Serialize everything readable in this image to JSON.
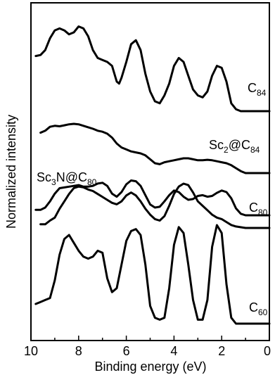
{
  "chart_data": {
    "type": "line",
    "title": "",
    "xlabel": "Binding energy (eV)",
    "ylabel": "Normalized intensity",
    "xlim": [
      10,
      0
    ],
    "x_reversed": true,
    "xticks": [
      "10",
      "8",
      "6",
      "4",
      "2",
      "0"
    ],
    "yticks_shown": false,
    "grid": false,
    "series": [
      {
        "label_main": "C",
        "label_sub": "84",
        "label_rest": "",
        "points": [
          [
            9.8,
            0.56
          ],
          [
            9.6,
            0.57
          ],
          [
            9.4,
            0.62
          ],
          [
            9.2,
            0.74
          ],
          [
            9.0,
            0.82
          ],
          [
            8.8,
            0.84
          ],
          [
            8.6,
            0.82
          ],
          [
            8.4,
            0.78
          ],
          [
            8.2,
            0.8
          ],
          [
            8.0,
            0.86
          ],
          [
            7.8,
            0.84
          ],
          [
            7.6,
            0.76
          ],
          [
            7.4,
            0.62
          ],
          [
            7.2,
            0.54
          ],
          [
            7.0,
            0.52
          ],
          [
            6.8,
            0.5
          ],
          [
            6.6,
            0.46
          ],
          [
            6.4,
            0.3
          ],
          [
            6.3,
            0.28
          ],
          [
            6.2,
            0.34
          ],
          [
            6.0,
            0.5
          ],
          [
            5.8,
            0.68
          ],
          [
            5.6,
            0.72
          ],
          [
            5.4,
            0.62
          ],
          [
            5.2,
            0.38
          ],
          [
            5.0,
            0.2
          ],
          [
            4.8,
            0.1
          ],
          [
            4.6,
            0.08
          ],
          [
            4.4,
            0.16
          ],
          [
            4.2,
            0.28
          ],
          [
            4.0,
            0.46
          ],
          [
            3.8,
            0.54
          ],
          [
            3.6,
            0.5
          ],
          [
            3.4,
            0.36
          ],
          [
            3.2,
            0.22
          ],
          [
            3.0,
            0.16
          ],
          [
            2.8,
            0.14
          ],
          [
            2.6,
            0.2
          ],
          [
            2.4,
            0.36
          ],
          [
            2.2,
            0.46
          ],
          [
            2.0,
            0.44
          ],
          [
            1.8,
            0.3
          ],
          [
            1.6,
            0.08
          ],
          [
            1.4,
            0.02
          ],
          [
            1.2,
            0.0
          ],
          [
            1.0,
            0.0
          ],
          [
            0.0,
            0.0
          ]
        ]
      },
      {
        "label_main": "Sc",
        "label_sub": "2",
        "label_rest": "@C84",
        "points": [
          [
            9.6,
            0.82
          ],
          [
            9.4,
            0.86
          ],
          [
            9.2,
            0.94
          ],
          [
            9.0,
            0.96
          ],
          [
            8.8,
            0.95
          ],
          [
            8.6,
            0.97
          ],
          [
            8.4,
            0.99
          ],
          [
            8.2,
            1.0
          ],
          [
            8.0,
            0.99
          ],
          [
            7.8,
            0.96
          ],
          [
            7.6,
            0.93
          ],
          [
            7.4,
            0.9
          ],
          [
            7.2,
            0.86
          ],
          [
            7.0,
            0.84
          ],
          [
            6.8,
            0.8
          ],
          [
            6.6,
            0.72
          ],
          [
            6.4,
            0.6
          ],
          [
            6.2,
            0.52
          ],
          [
            6.0,
            0.48
          ],
          [
            5.8,
            0.44
          ],
          [
            5.6,
            0.42
          ],
          [
            5.4,
            0.4
          ],
          [
            5.2,
            0.36
          ],
          [
            5.0,
            0.28
          ],
          [
            4.8,
            0.2
          ],
          [
            4.6,
            0.18
          ],
          [
            4.4,
            0.22
          ],
          [
            4.2,
            0.24
          ],
          [
            4.0,
            0.26
          ],
          [
            3.8,
            0.28
          ],
          [
            3.6,
            0.3
          ],
          [
            3.4,
            0.3
          ],
          [
            3.2,
            0.28
          ],
          [
            3.0,
            0.26
          ],
          [
            2.8,
            0.26
          ],
          [
            2.6,
            0.27
          ],
          [
            2.4,
            0.26
          ],
          [
            2.2,
            0.24
          ],
          [
            2.0,
            0.22
          ],
          [
            1.8,
            0.2
          ],
          [
            1.6,
            0.16
          ],
          [
            1.4,
            0.1
          ],
          [
            1.2,
            0.04
          ],
          [
            1.0,
            0.0
          ],
          [
            0.0,
            0.0
          ]
        ]
      },
      {
        "label_main": "Sc",
        "label_sub": "3",
        "label_rest": "N@C80",
        "points": [
          [
            9.6,
            0.05
          ],
          [
            9.4,
            0.05
          ],
          [
            9.2,
            0.1
          ],
          [
            9.0,
            0.14
          ],
          [
            8.8,
            0.26
          ],
          [
            8.6,
            0.36
          ],
          [
            8.4,
            0.46
          ],
          [
            8.2,
            0.54
          ],
          [
            8.0,
            0.56
          ],
          [
            7.8,
            0.55
          ],
          [
            7.6,
            0.52
          ],
          [
            7.4,
            0.5
          ],
          [
            7.2,
            0.46
          ],
          [
            7.0,
            0.42
          ],
          [
            6.8,
            0.38
          ],
          [
            6.6,
            0.34
          ],
          [
            6.4,
            0.32
          ],
          [
            6.2,
            0.36
          ],
          [
            6.0,
            0.44
          ],
          [
            5.8,
            0.48
          ],
          [
            5.6,
            0.44
          ],
          [
            5.4,
            0.36
          ],
          [
            5.2,
            0.26
          ],
          [
            5.0,
            0.18
          ],
          [
            4.8,
            0.12
          ],
          [
            4.6,
            0.1
          ],
          [
            4.4,
            0.16
          ],
          [
            4.2,
            0.3
          ],
          [
            4.0,
            0.46
          ],
          [
            3.8,
            0.56
          ],
          [
            3.6,
            0.6
          ],
          [
            3.4,
            0.58
          ],
          [
            3.2,
            0.48
          ],
          [
            3.0,
            0.36
          ],
          [
            2.8,
            0.3
          ],
          [
            2.6,
            0.24
          ],
          [
            2.4,
            0.18
          ],
          [
            2.2,
            0.14
          ],
          [
            2.0,
            0.12
          ],
          [
            1.8,
            0.08
          ],
          [
            1.6,
            0.04
          ],
          [
            1.4,
            0.02
          ],
          [
            1.0,
            0.0
          ],
          [
            0.0,
            0.0
          ]
        ]
      },
      {
        "label_main": "C",
        "label_sub": "80",
        "label_rest": "",
        "points": [
          [
            9.8,
            0.14
          ],
          [
            9.6,
            0.14
          ],
          [
            9.4,
            0.2
          ],
          [
            9.2,
            0.36
          ],
          [
            9.0,
            0.56
          ],
          [
            8.8,
            0.7
          ],
          [
            8.6,
            0.72
          ],
          [
            8.4,
            0.74
          ],
          [
            8.2,
            0.76
          ],
          [
            8.0,
            0.78
          ],
          [
            7.8,
            0.74
          ],
          [
            7.6,
            0.74
          ],
          [
            7.4,
            0.76
          ],
          [
            7.2,
            0.82
          ],
          [
            7.0,
            0.84
          ],
          [
            6.8,
            0.76
          ],
          [
            6.6,
            0.56
          ],
          [
            6.4,
            0.48
          ],
          [
            6.2,
            0.6
          ],
          [
            6.0,
            0.8
          ],
          [
            5.8,
            0.9
          ],
          [
            5.6,
            0.88
          ],
          [
            5.4,
            0.76
          ],
          [
            5.2,
            0.52
          ],
          [
            5.0,
            0.28
          ],
          [
            4.8,
            0.2
          ],
          [
            4.6,
            0.22
          ],
          [
            4.4,
            0.36
          ],
          [
            4.2,
            0.52
          ],
          [
            4.0,
            0.64
          ],
          [
            3.8,
            0.6
          ],
          [
            3.6,
            0.48
          ],
          [
            3.4,
            0.4
          ],
          [
            3.2,
            0.42
          ],
          [
            3.0,
            0.5
          ],
          [
            2.8,
            0.52
          ],
          [
            2.6,
            0.48
          ],
          [
            2.4,
            0.5
          ],
          [
            2.2,
            0.58
          ],
          [
            2.0,
            0.64
          ],
          [
            1.8,
            0.6
          ],
          [
            1.6,
            0.44
          ],
          [
            1.4,
            0.18
          ],
          [
            1.2,
            0.04
          ],
          [
            1.0,
            0.0
          ],
          [
            0.0,
            0.0
          ]
        ]
      },
      {
        "label_main": "C",
        "label_sub": "60",
        "label_rest": "",
        "points": [
          [
            9.8,
            0.2
          ],
          [
            9.6,
            0.22
          ],
          [
            9.4,
            0.24
          ],
          [
            9.2,
            0.26
          ],
          [
            9.0,
            0.44
          ],
          [
            8.8,
            0.7
          ],
          [
            8.6,
            0.86
          ],
          [
            8.4,
            0.9
          ],
          [
            8.2,
            0.82
          ],
          [
            8.0,
            0.74
          ],
          [
            7.8,
            0.68
          ],
          [
            7.6,
            0.66
          ],
          [
            7.4,
            0.68
          ],
          [
            7.2,
            0.74
          ],
          [
            7.0,
            0.72
          ],
          [
            6.8,
            0.46
          ],
          [
            6.6,
            0.32
          ],
          [
            6.4,
            0.36
          ],
          [
            6.2,
            0.6
          ],
          [
            6.0,
            0.84
          ],
          [
            5.8,
            0.94
          ],
          [
            5.6,
            0.96
          ],
          [
            5.4,
            0.9
          ],
          [
            5.2,
            0.6
          ],
          [
            5.0,
            0.18
          ],
          [
            4.8,
            0.06
          ],
          [
            4.6,
            0.04
          ],
          [
            4.4,
            0.06
          ],
          [
            4.2,
            0.36
          ],
          [
            4.0,
            0.8
          ],
          [
            3.8,
            0.98
          ],
          [
            3.6,
            0.92
          ],
          [
            3.4,
            0.6
          ],
          [
            3.2,
            0.24
          ],
          [
            3.0,
            0.04
          ],
          [
            2.8,
            0.04
          ],
          [
            2.6,
            0.24
          ],
          [
            2.4,
            0.78
          ],
          [
            2.2,
            1.0
          ],
          [
            2.0,
            0.92
          ],
          [
            1.8,
            0.4
          ],
          [
            1.6,
            0.06
          ],
          [
            1.4,
            0.0
          ],
          [
            1.0,
            0.0
          ],
          [
            0.0,
            0.0
          ]
        ]
      }
    ]
  }
}
